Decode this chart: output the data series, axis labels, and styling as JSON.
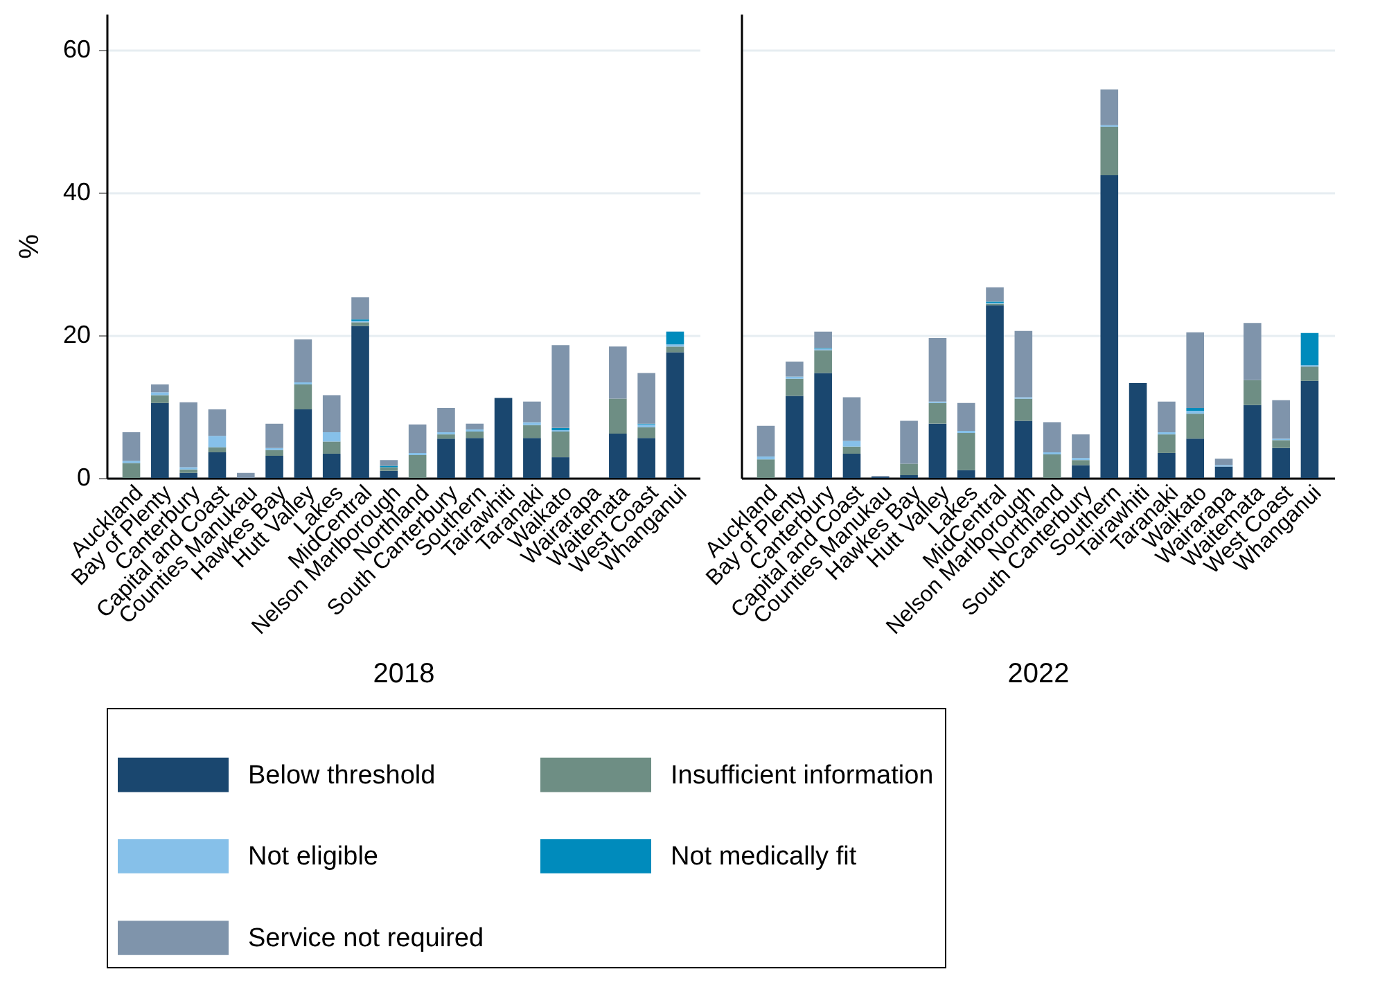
{
  "chart_data": [
    {
      "type": "bar",
      "stacked": true,
      "xlabel": "2018",
      "ylabel": "%",
      "ylim": [
        0,
        65
      ],
      "yticks": [
        0,
        20,
        40,
        60
      ],
      "grid": "y",
      "legend": "bottom",
      "categories": [
        "Auckland",
        "Bay of Plenty",
        "Canterbury",
        "Capital and Coast",
        "Counties Manukau",
        "Hawkes Bay",
        "Hutt Valley",
        "Lakes",
        "MidCentral",
        "Nelson Marlborough",
        "Northland",
        "South Canterbury",
        "Southern",
        "Tairawhiti",
        "Taranaki",
        "Waikato",
        "Wairarapa",
        "Waitemata",
        "West Coast",
        "Whanganui"
      ],
      "series": [
        {
          "name": "Below threshold",
          "color": "#1a476f",
          "values": [
            0,
            10.5,
            0.7,
            3.6,
            0,
            3.1,
            9.6,
            3.4,
            21.3,
            1.0,
            0,
            5.5,
            5.6,
            11.2,
            5.6,
            2.9,
            null,
            6.2,
            5.6,
            17.6
          ]
        },
        {
          "name": "Insufficient information",
          "color": "#6e8e84",
          "values": [
            2.1,
            1.1,
            0.5,
            0.7,
            0,
            0.8,
            3.5,
            1.7,
            0.5,
            0.5,
            3.2,
            0.6,
            0.9,
            0,
            1.8,
            3.6,
            null,
            4.9,
            1.5,
            0.8
          ]
        },
        {
          "name": "Not eligible",
          "color": "#86c0e9",
          "values": [
            0.3,
            0.4,
            0.3,
            1.6,
            0,
            0.3,
            0.3,
            1.3,
            0.2,
            0,
            0.3,
            0.3,
            0.3,
            0,
            0.4,
            0.2,
            null,
            0,
            0.4,
            0.3
          ]
        },
        {
          "name": "Not medically fit",
          "color": "#008bbc",
          "values": [
            0,
            0,
            0,
            0,
            0,
            0,
            0,
            0,
            0.2,
            0.2,
            0,
            0,
            0,
            0,
            0,
            0.3,
            null,
            0,
            0.1,
            1.8
          ]
        },
        {
          "name": "Service not required",
          "color": "#7f94ab",
          "values": [
            4.0,
            1.1,
            9.1,
            3.7,
            0.7,
            3.4,
            6.0,
            5.2,
            3.1,
            0.8,
            4.0,
            3.4,
            0.8,
            0,
            2.9,
            11.6,
            null,
            7.3,
            7.1,
            0
          ]
        }
      ]
    },
    {
      "type": "bar",
      "stacked": true,
      "xlabel": "2022",
      "ylim": [
        0,
        65
      ],
      "yticks": [
        0,
        20,
        40,
        60
      ],
      "grid": "y",
      "legend": "bottom",
      "tick_labels": "x",
      "categories": [
        "Auckland",
        "Bay of Plenty",
        "Canterbury",
        "Capital and Coast",
        "Counties Manukau",
        "Hawkes Bay",
        "Hutt Valley",
        "Lakes",
        "MidCentral",
        "Nelson Marlborough",
        "Northland",
        "South Canterbury",
        "Southern",
        "Tairawhiti",
        "Taranaki",
        "Waikato",
        "Wairarapa",
        "Waitemata",
        "West Coast",
        "Whanganui"
      ],
      "series": [
        {
          "name": "Below threshold",
          "color": "#1a476f",
          "values": [
            0,
            11.5,
            14.7,
            3.4,
            0.1,
            0.4,
            7.6,
            1.1,
            24.2,
            8.0,
            0,
            1.8,
            42.4,
            13.3,
            3.5,
            5.5,
            1.6,
            10.2,
            4.2,
            13.6
          ]
        },
        {
          "name": "Insufficient information",
          "color": "#6e8e84",
          "values": [
            2.6,
            2.4,
            3.2,
            1.0,
            0,
            1.6,
            2.9,
            5.2,
            0.2,
            3.1,
            3.3,
            0.7,
            6.8,
            0,
            2.6,
            3.5,
            0,
            3.5,
            1.1,
            2.0
          ]
        },
        {
          "name": "Not eligible",
          "color": "#86c0e9",
          "values": [
            0.4,
            0.3,
            0.2,
            0.8,
            0,
            0,
            0.2,
            0.3,
            0.1,
            0.2,
            0.3,
            0.3,
            0.2,
            0,
            0.3,
            0.4,
            0.2,
            0,
            0.2,
            0.2
          ]
        },
        {
          "name": "Not medically fit",
          "color": "#008bbc",
          "values": [
            0,
            0,
            0.1,
            0,
            0,
            0,
            0,
            0,
            0.2,
            0,
            0,
            0,
            0,
            0,
            0,
            0.4,
            0,
            0,
            0,
            4.5
          ]
        },
        {
          "name": "Service not required",
          "color": "#7f94ab",
          "values": [
            4.3,
            2.1,
            2.3,
            6.1,
            0.2,
            6.0,
            8.9,
            3.9,
            2.0,
            9.3,
            4.2,
            3.3,
            5.0,
            0,
            4.3,
            10.6,
            0.9,
            8.0,
            5.4,
            0
          ]
        }
      ]
    }
  ]
}
